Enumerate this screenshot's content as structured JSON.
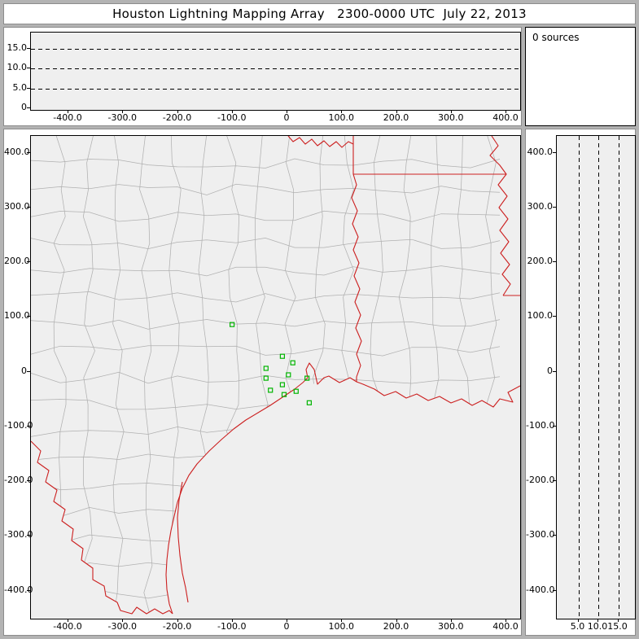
{
  "window": {
    "title": "Houston Lightning Mapping Array   2300-0000 UTC  July 22, 2013"
  },
  "sources_panel": {
    "text": "0 sources"
  },
  "axes": {
    "east_west_ticks": [
      {
        "km": -400,
        "label": "-400.0"
      },
      {
        "km": -300,
        "label": "-300.0"
      },
      {
        "km": -200,
        "label": "-200.0"
      },
      {
        "km": -100,
        "label": "-100.0"
      },
      {
        "km": 0,
        "label": "0"
      },
      {
        "km": 100,
        "label": "100.0"
      },
      {
        "km": 200,
        "label": "200.0"
      },
      {
        "km": 300,
        "label": "300.0"
      },
      {
        "km": 400,
        "label": "400.0"
      }
    ],
    "north_south_ticks": [
      {
        "km": 400,
        "label": "400.0"
      },
      {
        "km": 300,
        "label": "300.0"
      },
      {
        "km": 200,
        "label": "200.0"
      },
      {
        "km": 100,
        "label": "100.0"
      },
      {
        "km": 0,
        "label": "0"
      },
      {
        "km": -100,
        "label": "-100.0"
      },
      {
        "km": -200,
        "label": "-200.0"
      },
      {
        "km": -300,
        "label": "-300.0"
      },
      {
        "km": -400,
        "label": "-400.0"
      }
    ],
    "altitude_ticks_top_panel": [
      {
        "km": 15,
        "label": "15.0"
      },
      {
        "km": 10,
        "label": "10.0"
      },
      {
        "km": 5,
        "label": "5.0"
      },
      {
        "km": 0,
        "label": "0"
      }
    ],
    "altitude_ticks_right_panel": [
      {
        "km": 5,
        "label": "5.0"
      },
      {
        "km": 10,
        "label": "10.0"
      },
      {
        "km": 15,
        "label": "15.0"
      }
    ]
  },
  "chart_data": {
    "type": "scatter",
    "title": "Houston Lightning Mapping Array 2300-0000 UTC July 22, 2013",
    "sources_detected": 0,
    "panels": [
      {
        "name": "altitude_vs_east_west_km",
        "xlim": [
          -450,
          450
        ],
        "ylim": [
          0,
          19
        ],
        "dashed_gridlines_alt_km": [
          5,
          10,
          15
        ],
        "points": []
      },
      {
        "name": "plan_view_map",
        "xlim": [
          -450,
          450
        ],
        "ylim": [
          -450,
          450
        ],
        "points": [],
        "lma_stations_km": [
          {
            "x": -101,
            "y": 86
          },
          {
            "x": -39,
            "y": 6
          },
          {
            "x": -9,
            "y": 28
          },
          {
            "x": 10,
            "y": 16
          },
          {
            "x": -39,
            "y": -12
          },
          {
            "x": -31,
            "y": -34
          },
          {
            "x": -9,
            "y": -24
          },
          {
            "x": 2,
            "y": -6
          },
          {
            "x": -6,
            "y": -42
          },
          {
            "x": 16,
            "y": -36
          },
          {
            "x": 36,
            "y": -12
          },
          {
            "x": 40,
            "y": -57
          }
        ]
      },
      {
        "name": "altitude_vs_north_south_km",
        "xlim": [
          0,
          19
        ],
        "ylim": [
          -450,
          450
        ],
        "dashed_gridlines_alt_km": [
          5,
          10,
          15
        ],
        "points": []
      }
    ],
    "colors": {
      "station_marker": "#00b400",
      "state_and_coast_lines": "#cc2020",
      "county_lines": "#b0b0b0"
    }
  }
}
